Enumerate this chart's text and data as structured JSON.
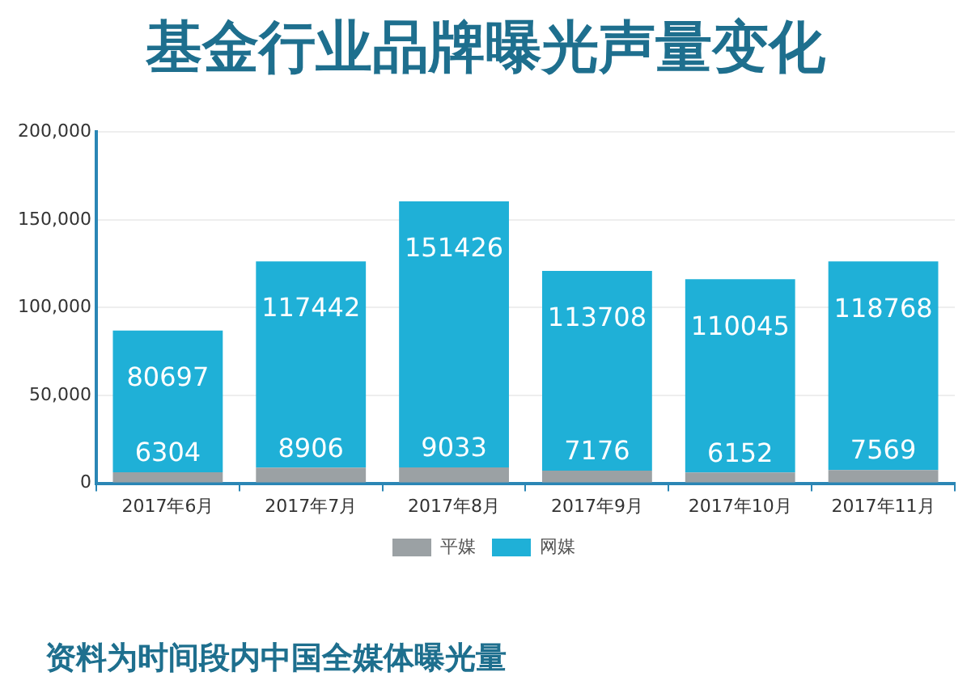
{
  "chart_data": {
    "type": "bar",
    "title": "基金行业品牌曝光声量变化",
    "categories": [
      "2017年6月",
      "2017年7月",
      "2017年8月",
      "2017年9月",
      "2017年10月",
      "2017年11月"
    ],
    "series": [
      {
        "name": "平媒",
        "color": "#9ba1a4",
        "values": [
          6304,
          8906,
          9033,
          7176,
          6152,
          7569
        ]
      },
      {
        "name": "网媒",
        "color": "#1fb0d7",
        "values": [
          80697,
          117442,
          151426,
          113708,
          110045,
          118768
        ]
      }
    ],
    "stacked": true,
    "ylim": [
      0,
      200000
    ],
    "yticks": [
      0,
      {
        "value": 50000,
        "label": "50,000"
      },
      {
        "value": 100000,
        "label": "100,000"
      },
      {
        "value": 150000,
        "label": "150,000"
      },
      {
        "value": 200000,
        "label": "200,000"
      }
    ],
    "grid": "y",
    "legend": "bottom",
    "data_labels": true,
    "annotations": [
      "资料为时间段内中国全媒体曝光量"
    ]
  }
}
